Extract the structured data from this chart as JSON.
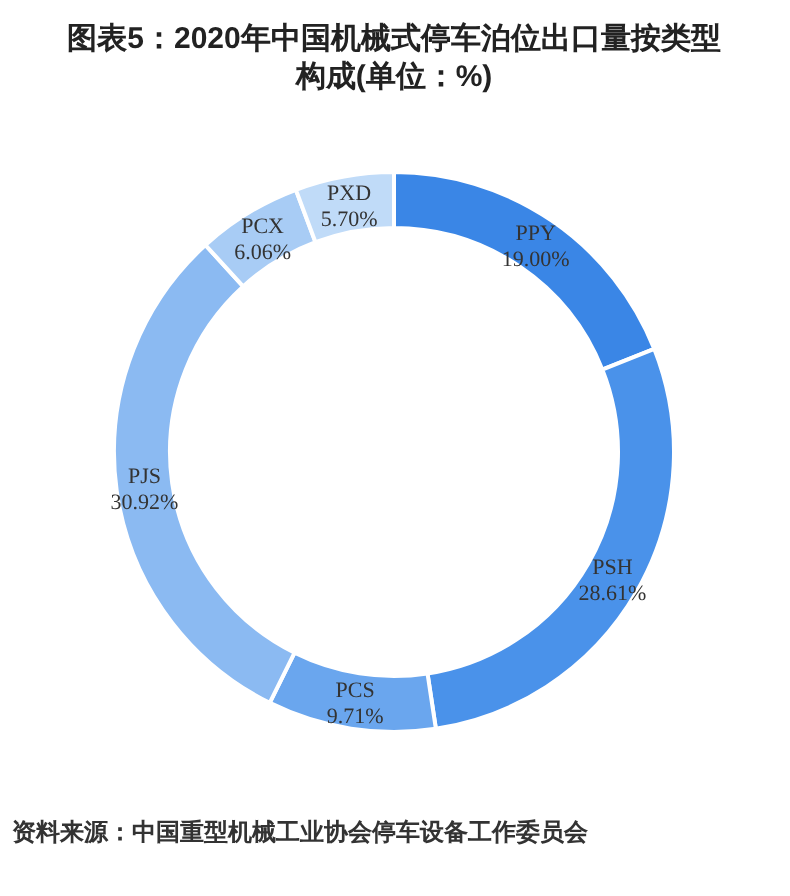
{
  "chart_data": {
    "type": "donut",
    "title": "图表5：2020年中国机械式停车泊位出口量按类型构成(单位：%)",
    "categories": [
      "PPY",
      "PSH",
      "PCS",
      "PJS",
      "PCX",
      "PXD"
    ],
    "values": [
      19.0,
      28.61,
      9.71,
      30.92,
      6.06,
      5.7
    ],
    "colors": [
      "#3a86e6",
      "#4a92ea",
      "#6aa6ee",
      "#8bbaf2",
      "#a8ccf5",
      "#c0dbf8"
    ],
    "value_labels": [
      "19.00%",
      "28.61%",
      "9.71%",
      "30.92%",
      "6.06%",
      "5.70%"
    ],
    "annotations": [
      "资料来源：中国重型机械工业协会停车设备工作委员会"
    ]
  }
}
